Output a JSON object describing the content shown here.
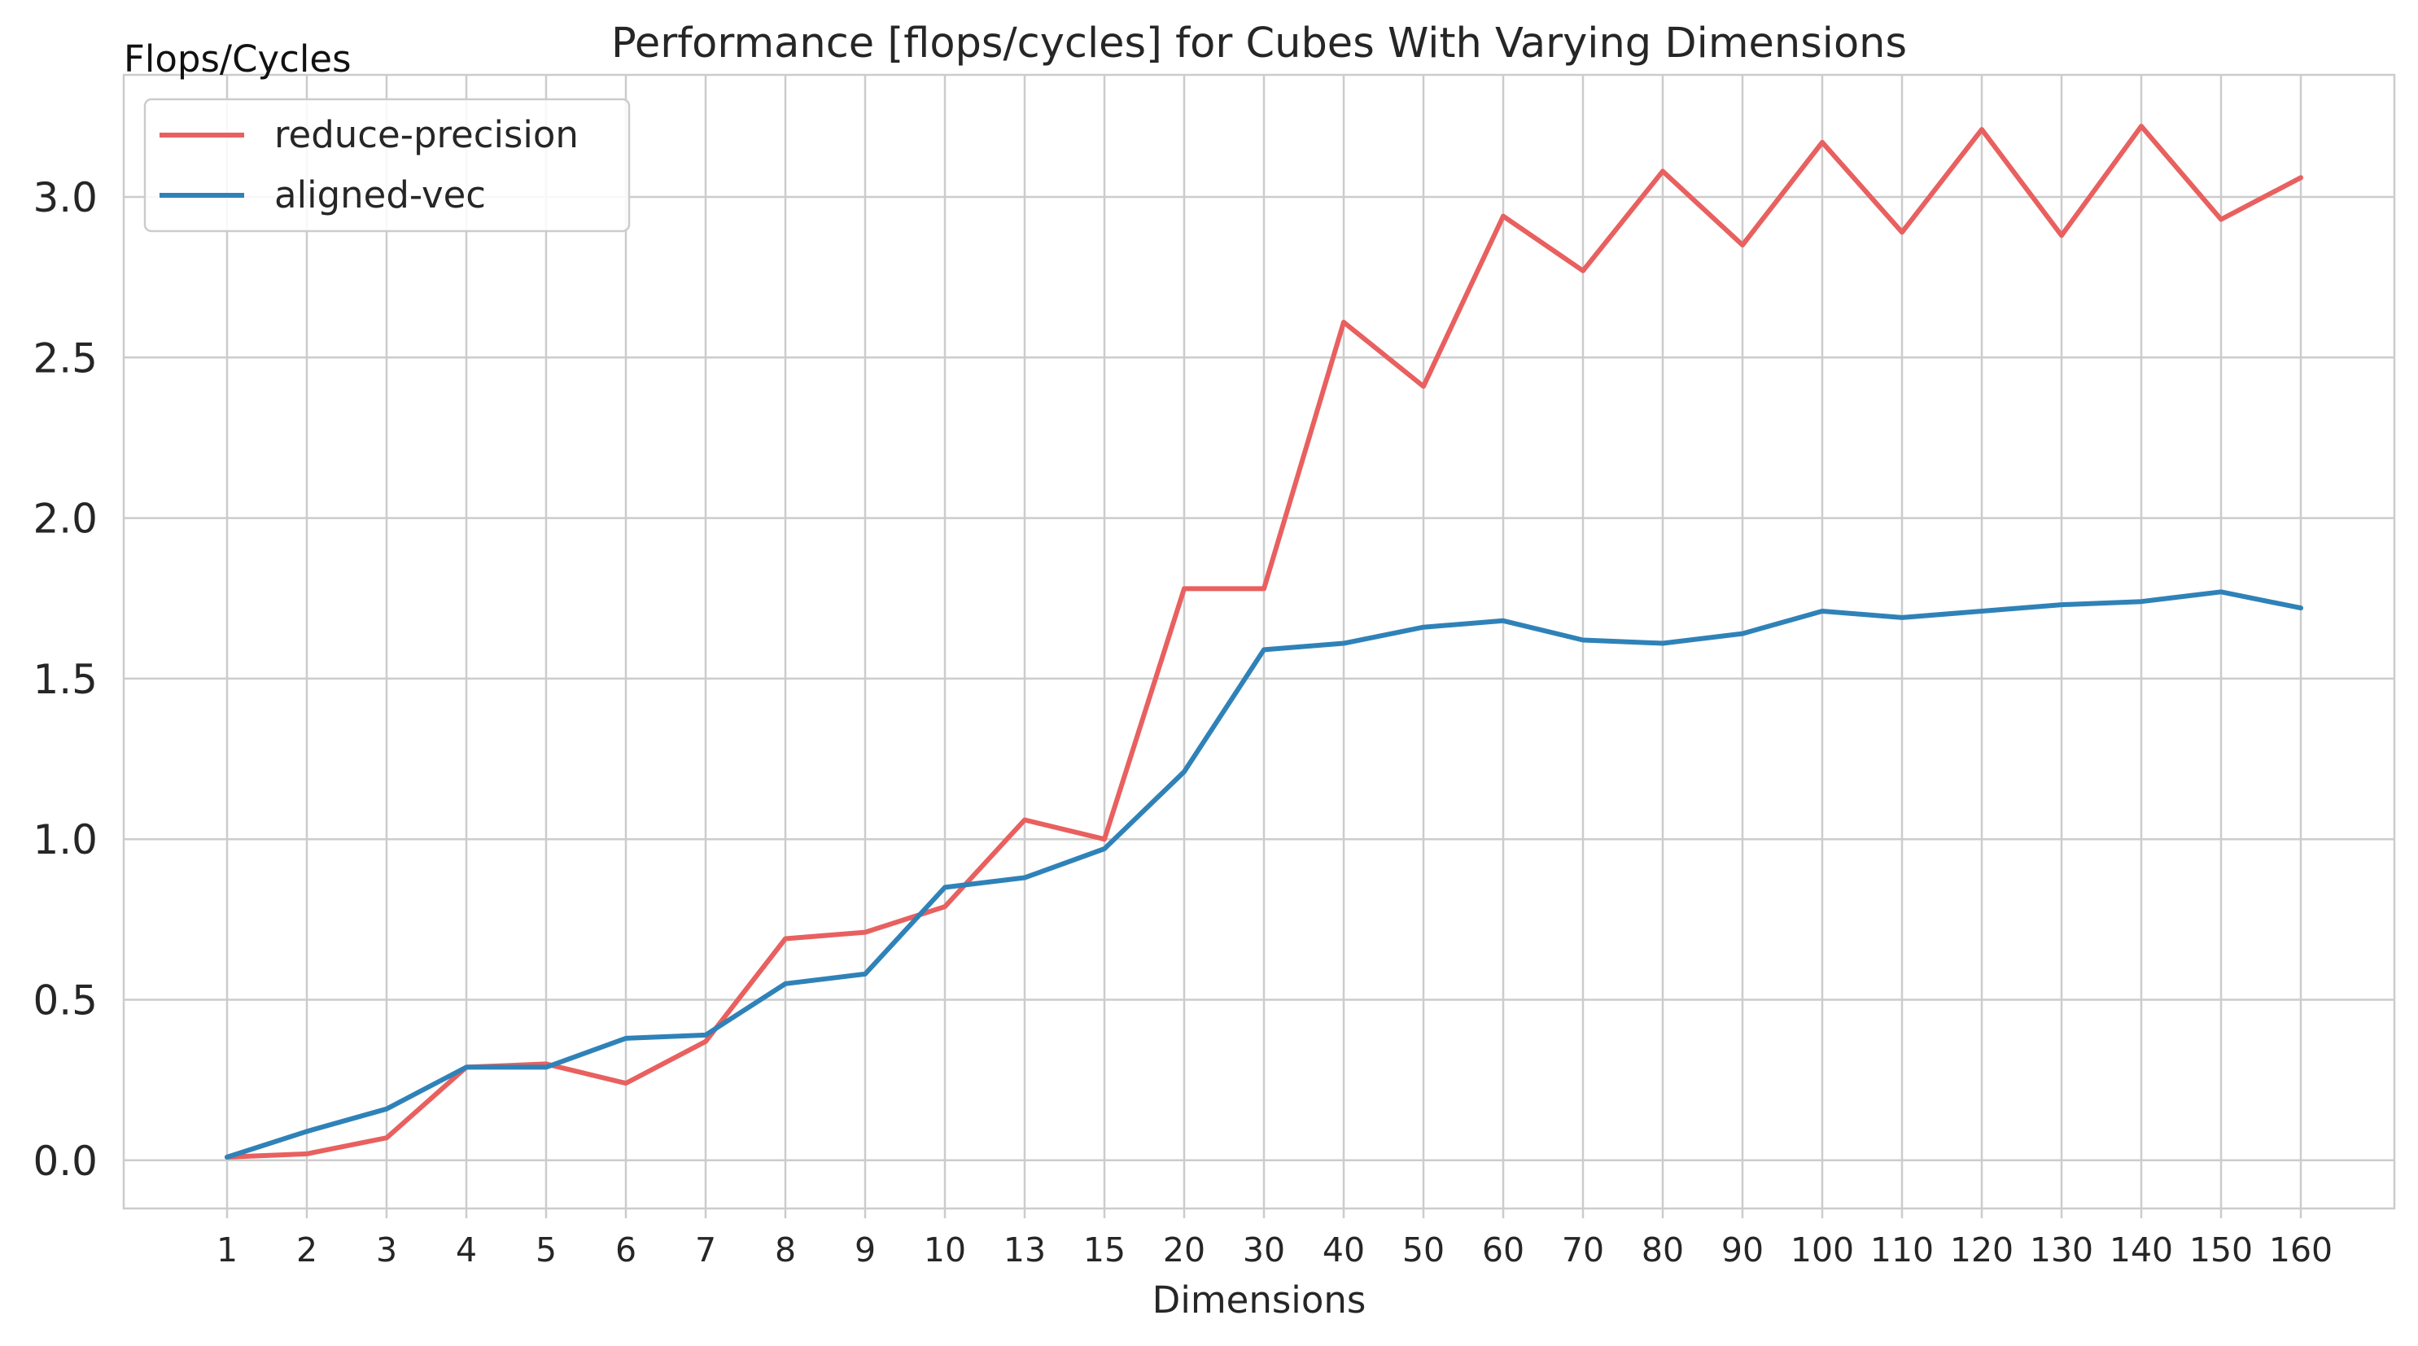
{
  "chart_data": {
    "type": "line",
    "title": "Performance [flops/cycles] for Cubes With Varying Dimensions",
    "xlabel": "Dimensions",
    "ylabel": "Flops/Cycles",
    "categories": [
      "1",
      "2",
      "3",
      "4",
      "5",
      "6",
      "7",
      "8",
      "9",
      "10",
      "13",
      "15",
      "20",
      "30",
      "40",
      "50",
      "60",
      "70",
      "80",
      "90",
      "100",
      "110",
      "120",
      "130",
      "140",
      "150",
      "160"
    ],
    "ylim": [
      -0.15,
      3.38
    ],
    "yticks": [
      0.0,
      0.5,
      1.0,
      1.5,
      2.0,
      2.5,
      3.0
    ],
    "ytick_labels": [
      "0.0",
      "0.5",
      "1.0",
      "1.5",
      "2.0",
      "2.5",
      "3.0"
    ],
    "grid": true,
    "legend_position": "top-left",
    "series": [
      {
        "name": "reduce-precision",
        "color": "#e8605f",
        "values": [
          0.01,
          0.02,
          0.07,
          0.29,
          0.3,
          0.24,
          0.37,
          0.69,
          0.71,
          0.79,
          1.06,
          1.0,
          1.78,
          1.78,
          2.61,
          2.41,
          2.94,
          2.77,
          3.08,
          2.85,
          3.17,
          2.89,
          3.21,
          2.88,
          3.22,
          2.93,
          3.06
        ]
      },
      {
        "name": "aligned-vec",
        "color": "#2f82b8",
        "values": [
          0.01,
          0.09,
          0.16,
          0.29,
          0.29,
          0.38,
          0.39,
          0.55,
          0.58,
          0.85,
          0.88,
          0.97,
          1.21,
          1.59,
          1.61,
          1.66,
          1.68,
          1.62,
          1.61,
          1.64,
          1.71,
          1.69,
          1.71,
          1.73,
          1.74,
          1.77,
          1.72
        ]
      }
    ]
  }
}
